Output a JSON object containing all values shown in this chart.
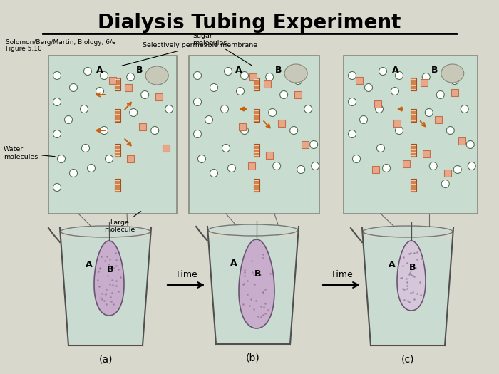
{
  "title": "Dialysis Tubing Experiment",
  "title_fontsize": 20,
  "subtitle_line1": "Solomon/Berg/Martin, Biology, 6/e",
  "subtitle_line2": "Figure 5.10",
  "bg_color": "#d8d8cc",
  "box_bg": "#c8ddd0",
  "box_border": "#888880",
  "membrane_color_face": "#d4824a",
  "membrane_color_edge": "#a05020",
  "sugar_face": "#e8a888",
  "sugar_edge": "#c07050",
  "large_face": "#c8c8b8",
  "large_edge": "#888878",
  "water_face": "#ffffff",
  "water_edge": "#507050",
  "arrow_color": "#c86010",
  "beaker_water": "#c8dcd4",
  "beaker_edge": "#505050",
  "bag_a_face": "#c8a8cc",
  "bag_b_face": "#c8a8cc",
  "bag_c_face": "#d8c4dc",
  "bag_dots": "#907890",
  "panel_labels": [
    "(a)",
    "(b)",
    "(c)"
  ],
  "time_labels": [
    "Time",
    "Time"
  ],
  "ann_sel_perm": "Selectively permeable membrane",
  "ann_sugar": "Sugar\nmolecules",
  "ann_water": "Water\nmolecules",
  "ann_large": "Large\nmolecule"
}
